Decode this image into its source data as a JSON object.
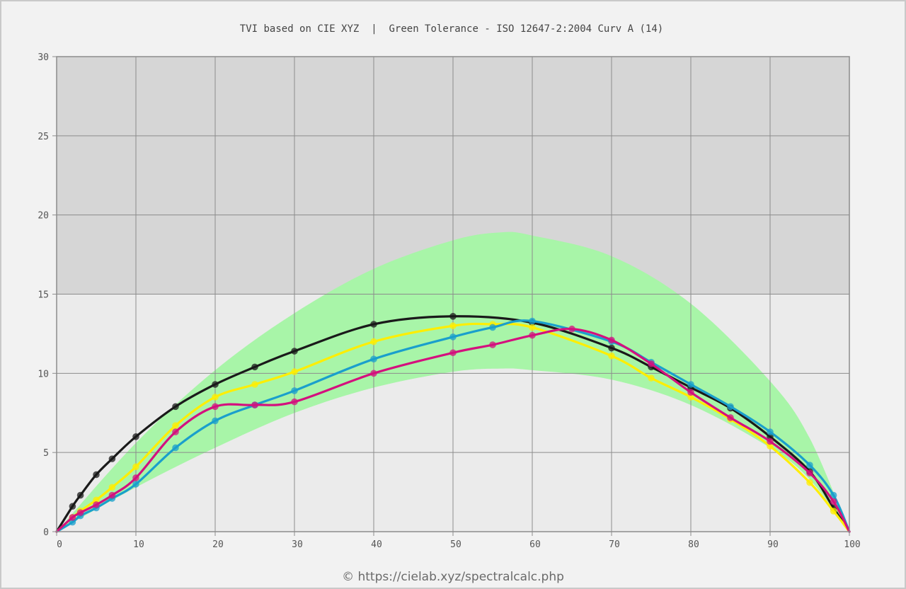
{
  "chart_data": {
    "type": "line",
    "title": "TVI based on CIE XYZ  |  Green Tolerance - ISO 12647-2:2004 Curv A (14)",
    "footer": "© https://cielab.xyz/spectralcalc.php",
    "xlabel": "",
    "ylabel": "",
    "xlim": [
      0,
      100
    ],
    "ylim": [
      0,
      30
    ],
    "x_ticks": [
      0,
      10,
      20,
      30,
      40,
      50,
      60,
      70,
      80,
      90,
      100
    ],
    "y_ticks": [
      0,
      5,
      10,
      15,
      20,
      25,
      30
    ],
    "grid": true,
    "background_bands": [
      {
        "y_from": 0,
        "y_to": 15,
        "color": "#ebebeb"
      },
      {
        "y_from": 15,
        "y_to": 30,
        "color": "#d6d6d6"
      }
    ],
    "tolerance_band": {
      "color": "#a8f5a8",
      "x": [
        0,
        10,
        20,
        30,
        40,
        50,
        56,
        60,
        70,
        80,
        90,
        95,
        100
      ],
      "upper": [
        0,
        5.6,
        10.2,
        13.8,
        16.6,
        18.4,
        18.9,
        18.7,
        17.4,
        14.4,
        9.5,
        5.9,
        0
      ],
      "lower": [
        0,
        2.8,
        5.3,
        7.5,
        9.1,
        10.1,
        10.3,
        10.2,
        9.6,
        8.0,
        5.3,
        3.3,
        0
      ]
    },
    "series": [
      {
        "color": "#1a1a1a",
        "x": [
          0,
          2,
          3,
          5,
          7,
          10,
          15,
          20,
          25,
          30,
          40,
          50,
          60,
          70,
          75,
          80,
          85,
          90,
          95,
          98,
          100
        ],
        "y": [
          0,
          1.6,
          2.3,
          3.6,
          4.6,
          6.0,
          7.9,
          9.3,
          10.4,
          11.4,
          13.1,
          13.6,
          13.2,
          11.6,
          10.4,
          9.1,
          7.8,
          6.0,
          3.8,
          1.5,
          0
        ]
      },
      {
        "color": "#ffee00",
        "x": [
          0,
          2,
          3,
          5,
          7,
          10,
          15,
          20,
          25,
          30,
          40,
          50,
          55,
          60,
          70,
          75,
          80,
          85,
          90,
          95,
          98,
          100
        ],
        "y": [
          0,
          0.9,
          1.3,
          2.0,
          2.8,
          4.1,
          6.7,
          8.5,
          9.3,
          10.1,
          12.0,
          13.0,
          13.1,
          12.9,
          11.1,
          9.7,
          8.5,
          7.1,
          5.4,
          3.1,
          1.3,
          0
        ]
      },
      {
        "color": "#1a9fcc",
        "x": [
          0,
          2,
          3,
          5,
          7,
          10,
          15,
          20,
          25,
          30,
          40,
          50,
          55,
          60,
          70,
          75,
          80,
          85,
          90,
          95,
          98,
          100
        ],
        "y": [
          0,
          0.6,
          1.0,
          1.5,
          2.1,
          3.0,
          5.3,
          7.0,
          8.0,
          8.9,
          10.9,
          12.3,
          12.9,
          13.3,
          12.0,
          10.7,
          9.3,
          7.9,
          6.3,
          4.2,
          2.3,
          0
        ]
      },
      {
        "color": "#d4107e",
        "x": [
          0,
          2,
          3,
          5,
          7,
          10,
          15,
          20,
          25,
          30,
          40,
          50,
          55,
          60,
          65,
          70,
          75,
          80,
          85,
          90,
          95,
          98,
          100
        ],
        "y": [
          0,
          0.9,
          1.2,
          1.7,
          2.3,
          3.4,
          6.3,
          7.9,
          8.0,
          8.2,
          10.0,
          11.3,
          11.8,
          12.4,
          12.8,
          12.1,
          10.6,
          8.8,
          7.2,
          5.7,
          3.7,
          1.9,
          0
        ]
      }
    ]
  }
}
